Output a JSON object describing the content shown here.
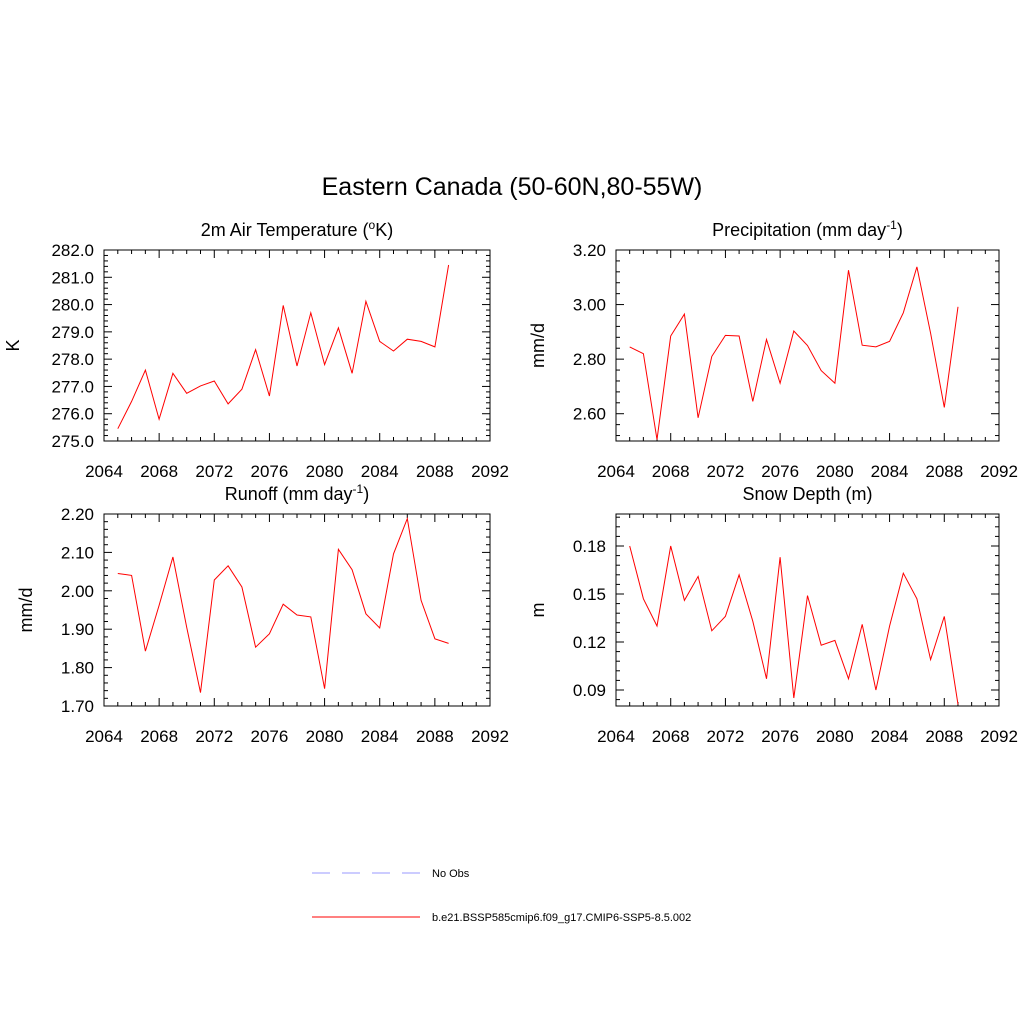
{
  "title": "Eastern Canada (50-60N,80-55W)",
  "colors": {
    "model": "#ff0000",
    "obs": "#9999ff",
    "axis": "#000000"
  },
  "legend": [
    {
      "label": "No Obs",
      "style": "dashed",
      "color": "#9999ff"
    },
    {
      "label": "b.e21.BSSP585cmip6.f09_g17.CMIP6-SSP5-8.5.002",
      "style": "solid",
      "color": "#ff0000"
    }
  ],
  "chart_data": [
    {
      "type": "line",
      "title": "2m Air Temperature (",
      "title_sup": "o",
      "title_after": "K)",
      "ylabel": "K",
      "xlim": [
        2064,
        2092
      ],
      "ylim": [
        275.0,
        282.0
      ],
      "xticks": [
        2064,
        2068,
        2072,
        2076,
        2080,
        2084,
        2088,
        2092
      ],
      "xtick_labels": [
        "2064",
        "2068",
        "2072",
        "2076",
        "2080",
        "2084",
        "2088",
        "2092"
      ],
      "yticks": [
        275.0,
        276.0,
        277.0,
        278.0,
        279.0,
        280.0,
        281.0,
        282.0
      ],
      "ytick_labels": [
        "275.0",
        "276.0",
        "277.0",
        "278.0",
        "279.0",
        "280.0",
        "281.0",
        "282.0"
      ],
      "x": [
        2065,
        2066,
        2067,
        2068,
        2069,
        2070,
        2071,
        2072,
        2073,
        2074,
        2075,
        2076,
        2077,
        2078,
        2079,
        2080,
        2081,
        2082,
        2083,
        2084,
        2085,
        2086,
        2087,
        2088,
        2089
      ],
      "series": [
        {
          "values": [
            275.45,
            276.45,
            277.6,
            275.8,
            277.48,
            276.75,
            277.02,
            277.2,
            276.36,
            276.9,
            278.35,
            276.65,
            279.97,
            277.75,
            279.7,
            277.8,
            279.15,
            277.48,
            280.12,
            278.65,
            278.3,
            278.73,
            278.65,
            278.45,
            281.45
          ]
        }
      ]
    },
    {
      "type": "line",
      "title": "Precipitation (mm day",
      "title_sup": "-1",
      "title_after": ")",
      "ylabel": "mm/d",
      "xlim": [
        2064,
        2092
      ],
      "ylim": [
        2.5,
        3.2
      ],
      "xticks": [
        2064,
        2068,
        2072,
        2076,
        2080,
        2084,
        2088,
        2092
      ],
      "xtick_labels": [
        "2064",
        "2068",
        "2072",
        "2076",
        "2080",
        "2084",
        "2088",
        "2092"
      ],
      "yticks": [
        2.6,
        2.8,
        3.0,
        3.2
      ],
      "ytick_labels": [
        "2.60",
        "2.80",
        "3.00",
        "3.20"
      ],
      "x": [
        2065,
        2066,
        2067,
        2068,
        2069,
        2070,
        2071,
        2072,
        2073,
        2074,
        2075,
        2076,
        2077,
        2078,
        2079,
        2080,
        2081,
        2082,
        2083,
        2084,
        2085,
        2086,
        2087,
        2088,
        2089
      ],
      "series": [
        {
          "values": [
            2.845,
            2.82,
            2.505,
            2.885,
            2.965,
            2.585,
            2.81,
            2.887,
            2.885,
            2.645,
            2.872,
            2.712,
            2.903,
            2.85,
            2.758,
            2.712,
            3.126,
            2.851,
            2.845,
            2.865,
            2.97,
            3.138,
            2.895,
            2.623,
            2.992
          ]
        }
      ]
    },
    {
      "type": "line",
      "title": "Runoff (mm day",
      "title_sup": "-1",
      "title_after": ")",
      "ylabel": "mm/d",
      "xlim": [
        2064,
        2092
      ],
      "ylim": [
        1.7,
        2.2
      ],
      "xticks": [
        2064,
        2068,
        2072,
        2076,
        2080,
        2084,
        2088,
        2092
      ],
      "xtick_labels": [
        "2064",
        "2068",
        "2072",
        "2076",
        "2080",
        "2084",
        "2088",
        "2092"
      ],
      "yticks": [
        1.7,
        1.8,
        1.9,
        2.0,
        2.1,
        2.2
      ],
      "ytick_labels": [
        "1.70",
        "1.80",
        "1.90",
        "2.00",
        "2.10",
        "2.20"
      ],
      "x": [
        2065,
        2066,
        2067,
        2068,
        2069,
        2070,
        2071,
        2072,
        2073,
        2074,
        2075,
        2076,
        2077,
        2078,
        2079,
        2080,
        2081,
        2082,
        2083,
        2084,
        2085,
        2086,
        2087,
        2088,
        2089
      ],
      "series": [
        {
          "values": [
            2.045,
            2.04,
            1.843,
            1.962,
            2.088,
            1.905,
            1.735,
            2.028,
            2.065,
            2.01,
            1.853,
            1.888,
            1.965,
            1.937,
            1.932,
            1.745,
            2.108,
            2.055,
            1.94,
            1.903,
            2.096,
            2.188,
            1.975,
            1.875,
            1.863
          ]
        }
      ]
    },
    {
      "type": "line",
      "title": "Snow Depth (m)",
      "title_sup": "",
      "title_after": "",
      "ylabel": "m",
      "xlim": [
        2064,
        2092
      ],
      "ylim": [
        0.08,
        0.2
      ],
      "xticks": [
        2064,
        2068,
        2072,
        2076,
        2080,
        2084,
        2088,
        2092
      ],
      "xtick_labels": [
        "2064",
        "2068",
        "2072",
        "2076",
        "2080",
        "2084",
        "2088",
        "2092"
      ],
      "yticks": [
        0.09,
        0.12,
        0.15,
        0.18
      ],
      "ytick_labels": [
        "0.09",
        "0.12",
        "0.15",
        "0.18"
      ],
      "x": [
        2065,
        2066,
        2067,
        2068,
        2069,
        2070,
        2071,
        2072,
        2073,
        2074,
        2075,
        2076,
        2077,
        2078,
        2079,
        2080,
        2081,
        2082,
        2083,
        2084,
        2085,
        2086,
        2087,
        2088,
        2089
      ],
      "series": [
        {
          "values": [
            0.18,
            0.147,
            0.13,
            0.18,
            0.146,
            0.161,
            0.127,
            0.136,
            0.162,
            0.133,
            0.097,
            0.173,
            0.085,
            0.149,
            0.118,
            0.121,
            0.097,
            0.131,
            0.09,
            0.13,
            0.163,
            0.147,
            0.109,
            0.136,
            0.081
          ]
        }
      ]
    }
  ]
}
